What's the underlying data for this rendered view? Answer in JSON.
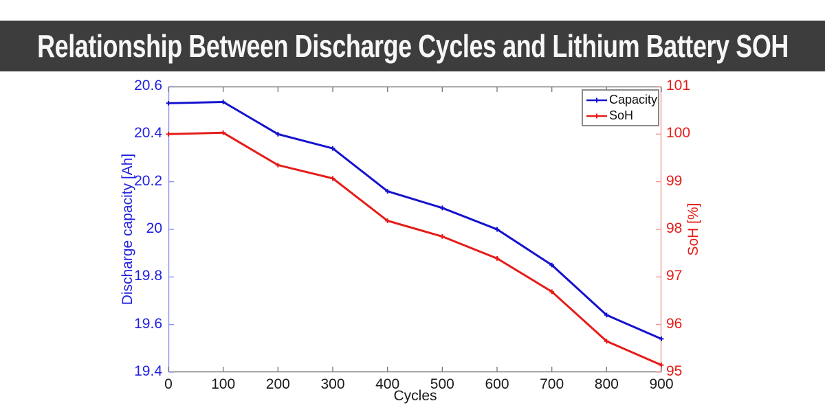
{
  "banner": {
    "title": "Relationship Between Discharge Cycles and Lithium Battery SOH",
    "background": "#3d3d3d",
    "text_color": "#f7f7f7"
  },
  "chart_data": {
    "type": "line",
    "x": [
      0,
      100,
      200,
      300,
      400,
      500,
      600,
      700,
      800,
      900
    ],
    "series": [
      {
        "name": "Capacity",
        "axis": "left",
        "color": "#1412cd",
        "marker": "plus",
        "values": [
          20.53,
          20.535,
          20.4,
          20.34,
          20.16,
          20.09,
          20.0,
          19.85,
          19.64,
          19.54
        ]
      },
      {
        "name": "SoH",
        "axis": "right",
        "color": "#e51c18",
        "marker": "plus",
        "values": [
          100.0,
          100.03,
          99.35,
          99.07,
          98.18,
          97.85,
          97.39,
          96.69,
          95.65,
          95.15
        ]
      }
    ],
    "xlabel": "Cycles",
    "ylabel_left": "Discharge capacity [Ah]",
    "ylabel_right": "SoH [%]",
    "xlim": [
      0,
      900
    ],
    "ylim_left": [
      19.4,
      20.6
    ],
    "ylim_right": [
      95,
      101
    ],
    "xticks": [
      0,
      100,
      200,
      300,
      400,
      500,
      600,
      700,
      800,
      900
    ],
    "yticks_left": [
      20.6,
      20.4,
      20.2,
      20,
      19.8,
      19.6,
      19.4
    ],
    "yticks_right": [
      101,
      100,
      99,
      98,
      97,
      96,
      95
    ],
    "grid": false,
    "legend": {
      "position": "top-right",
      "entries": [
        "Capacity",
        "SoH"
      ]
    },
    "axis_colors": {
      "left": "#2020e0",
      "right": "#e51c18",
      "x": "#1a1a1a"
    },
    "spine_colors": {
      "left": "#9090f0",
      "right": "#f09a96",
      "top": "#7d7d7d",
      "bottom": "#7d7d7d"
    }
  }
}
